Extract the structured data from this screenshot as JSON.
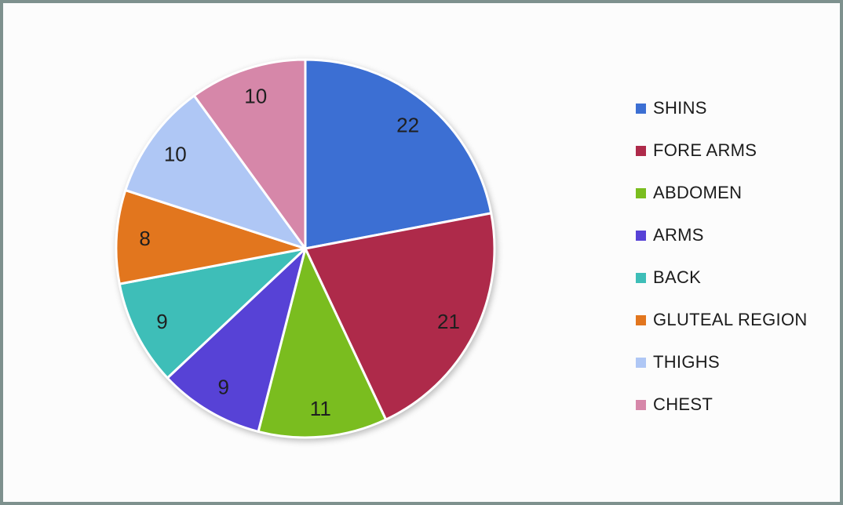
{
  "frame": {
    "border_color": "#7e918e",
    "background_color": "#fcfcfc"
  },
  "chart_data": {
    "type": "pie",
    "title": "",
    "categories": [
      "SHINS",
      "FORE ARMS",
      "ABDOMEN",
      "ARMS",
      "BACK",
      "GLUTEAL REGION",
      "THIGHS",
      "CHEST"
    ],
    "values": [
      22,
      21,
      11,
      9,
      9,
      8,
      10,
      10
    ],
    "colors": [
      "#3c6fd3",
      "#ae2a4a",
      "#7abd1f",
      "#5742d6",
      "#3ebeb8",
      "#e2761e",
      "#afc7f5",
      "#d687a9"
    ],
    "data_labels": "values shown inside slices",
    "label_color": "#1f1f1f",
    "slice_border_color": "#ffffff",
    "start_angle_deg": 0,
    "direction": "clockwise",
    "legend_position": "right",
    "legend_text_color": "#1c1c1c"
  }
}
